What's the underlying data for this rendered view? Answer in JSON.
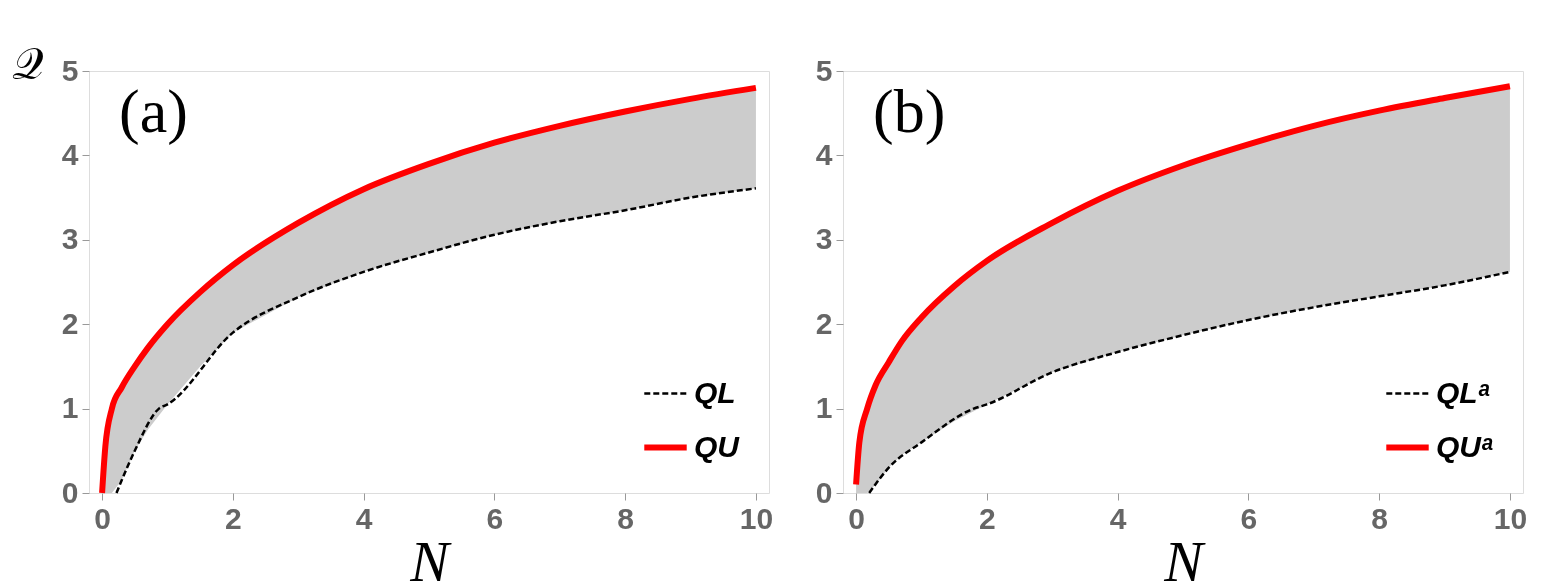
{
  "chart_data": [
    {
      "type": "line",
      "xlabel": "N",
      "ylabel": "𝒬",
      "annotations": [
        "(a)"
      ],
      "xlim": [
        -0.2,
        10.2
      ],
      "ylim": [
        0,
        5
      ],
      "xticks": [
        0,
        2,
        4,
        6,
        8,
        10
      ],
      "yticks": [
        0,
        1,
        2,
        3,
        4,
        5
      ],
      "grid": false,
      "legend": "bottom right",
      "series": [
        {
          "name": "QL",
          "color": "#000000",
          "line_style": "dashed",
          "x": [
            0.22,
            0.3,
            0.5,
            0.87,
            1,
            2,
            3,
            4,
            5,
            6,
            7,
            8,
            9,
            10
          ],
          "values": [
            0,
            0.15,
            0.5,
            1,
            1.05,
            1.9,
            2.32,
            2.62,
            2.85,
            3.06,
            3.22,
            3.35,
            3.5,
            3.61
          ]
        },
        {
          "name": "QU",
          "color": "#ff0000",
          "line_style": "solid",
          "x": [
            0,
            0.05,
            0.15,
            0.3,
            0.5,
            0.7,
            1,
            1.5,
            2,
            3,
            4,
            5,
            6,
            7,
            8,
            9,
            10
          ],
          "values": [
            0,
            0.55,
            1,
            1.25,
            1.5,
            1.72,
            2.0,
            2.38,
            2.7,
            3.2,
            3.6,
            3.9,
            4.15,
            4.35,
            4.52,
            4.67,
            4.8
          ],
          "lower": [
            0,
            0,
            0,
            0.15,
            0.5,
            0.75,
            1.05,
            1.5,
            1.9,
            2.32,
            2.62,
            2.85,
            3.06,
            3.22,
            3.35,
            3.5,
            3.61
          ],
          "upper": [
            0,
            0.55,
            1,
            1.25,
            1.5,
            1.72,
            2.0,
            2.38,
            2.7,
            3.2,
            3.6,
            3.9,
            4.15,
            4.35,
            4.52,
            4.67,
            4.8
          ]
        }
      ]
    },
    {
      "type": "line",
      "xlabel": "N",
      "annotations": [
        "(b)"
      ],
      "xlim": [
        -0.2,
        10.2
      ],
      "ylim": [
        0,
        5
      ],
      "xticks": [
        0,
        2,
        4,
        6,
        8,
        10
      ],
      "yticks": [
        0,
        1,
        2,
        3,
        4,
        5
      ],
      "grid": false,
      "legend": "bottom right",
      "series": [
        {
          "name": "QLᵃ",
          "color": "#000000",
          "line_style": "dashed",
          "x": [
            0.2,
            0.5,
            1,
            1.8,
            2,
            3,
            4,
            5,
            6,
            7,
            8,
            9,
            10
          ],
          "values": [
            0,
            0.3,
            0.6,
            1,
            1.05,
            1.43,
            1.67,
            1.87,
            2.05,
            2.2,
            2.33,
            2.46,
            2.62
          ]
        },
        {
          "name": "QUᵃ",
          "color": "#ff0000",
          "line_style": "solid",
          "x": [
            0,
            0.05,
            0.17,
            0.3,
            0.5,
            0.7,
            1,
            1.5,
            2,
            3,
            4,
            5,
            6,
            7,
            8,
            9,
            10
          ],
          "values": [
            0.1,
            0.6,
            1,
            1.28,
            1.55,
            1.8,
            2.08,
            2.45,
            2.75,
            3.2,
            3.58,
            3.88,
            4.13,
            4.35,
            4.53,
            4.68,
            4.82
          ],
          "lower": [
            0,
            0,
            0,
            0.1,
            0.3,
            0.45,
            0.6,
            0.85,
            1.05,
            1.43,
            1.67,
            1.87,
            2.05,
            2.2,
            2.33,
            2.46,
            2.62
          ],
          "upper": [
            0.1,
            0.6,
            1,
            1.28,
            1.55,
            1.8,
            2.08,
            2.45,
            2.75,
            3.2,
            3.58,
            3.88,
            4.13,
            4.35,
            4.53,
            4.68,
            4.82
          ]
        }
      ]
    }
  ]
}
